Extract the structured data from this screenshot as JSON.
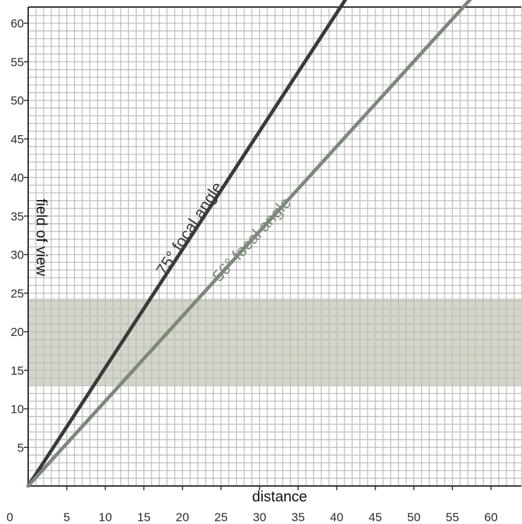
{
  "chart_data": {
    "type": "line",
    "title": "",
    "xlabel": "distance",
    "ylabel": "field of view",
    "xlim": [
      0,
      64
    ],
    "ylim": [
      0,
      64
    ],
    "xticks": [
      0,
      5,
      10,
      15,
      20,
      25,
      30,
      35,
      40,
      45,
      50,
      55,
      60
    ],
    "yticks": [
      5,
      10,
      15,
      20,
      25,
      30,
      35,
      40,
      45,
      50,
      55,
      60
    ],
    "grid": true,
    "band": {
      "y0": 13,
      "y1": 24.3,
      "color": "#d3d6c8"
    },
    "series": [
      {
        "name": "75° focal angle",
        "color": "#3a393b",
        "x": [
          0,
          42
        ],
        "y": [
          0,
          64.4
        ],
        "label_pos": [
          21.5,
          33
        ],
        "label_angle": 56.9
      },
      {
        "name": "56° focal angle",
        "color": "#7b8979",
        "x": [
          0,
          58.5
        ],
        "y": [
          0,
          64.4
        ],
        "label_pos": [
          29.5,
          31.5
        ],
        "label_angle": 47.7
      }
    ]
  }
}
